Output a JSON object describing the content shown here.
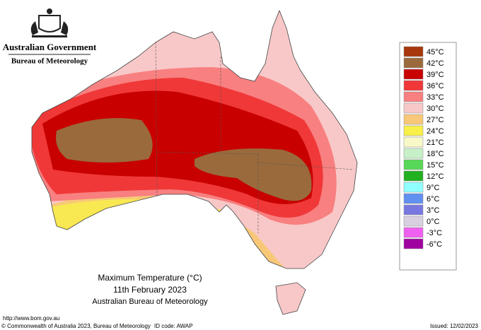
{
  "header": {
    "government": "Australian Government",
    "bureau": "Bureau of Meteorology"
  },
  "map": {
    "title": "Maximum Temperature (°C)",
    "date": "11th February 2023",
    "source": "Australian Bureau of Meteorology"
  },
  "legend": [
    {
      "label": "45°C",
      "color": "#a8380c"
    },
    {
      "label": "42°C",
      "color": "#9a6a3c"
    },
    {
      "label": "39°C",
      "color": "#c80000"
    },
    {
      "label": "36°C",
      "color": "#f03838"
    },
    {
      "label": "33°C",
      "color": "#f88080"
    },
    {
      "label": "30°C",
      "color": "#f8c8c8"
    },
    {
      "label": "27°C",
      "color": "#f8c878"
    },
    {
      "label": "24°C",
      "color": "#f8f048"
    },
    {
      "label": "21°C",
      "color": "#f8f8c8"
    },
    {
      "label": "18°C",
      "color": "#c8f0c8"
    },
    {
      "label": "15°C",
      "color": "#58d858"
    },
    {
      "label": "12°C",
      "color": "#20b020"
    },
    {
      "label": "9°C",
      "color": "#90ffff"
    },
    {
      "label": "6°C",
      "color": "#6090f0"
    },
    {
      "label": "3°C",
      "color": "#7878e0"
    },
    {
      "label": "0°C",
      "color": "#d8d0e0"
    },
    {
      "label": "-3°C",
      "color": "#f060f0"
    },
    {
      "label": "-6°C",
      "color": "#a000a0"
    }
  ],
  "footer": {
    "url": "http://www.bom.gov.au",
    "copyright": "© Commonwealth of Australia 2023, Bureau of Meteorology",
    "id_code": "ID code: AWAP",
    "issued": "Issued: 12/02/2023"
  }
}
